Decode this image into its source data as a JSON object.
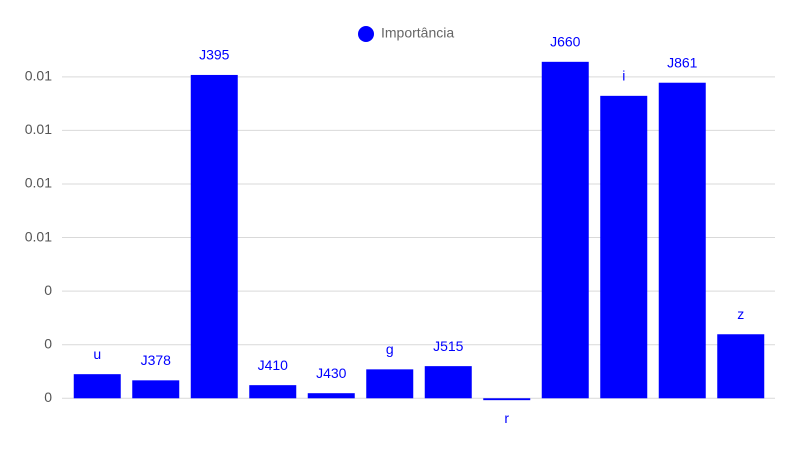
{
  "chart_data": {
    "type": "bar",
    "categories": [
      "u",
      "J378",
      "J395",
      "J410",
      "J430",
      "g",
      "J515",
      "r",
      "J660",
      "i",
      "J861",
      "z"
    ],
    "series": [
      {
        "name": "Importância",
        "color": "#0000ff",
        "values": [
          0.0009,
          0.00067,
          0.01207,
          0.00049,
          0.00019,
          0.00108,
          0.0012,
          -7e-05,
          0.01256,
          0.01129,
          0.01178,
          0.00239
        ]
      }
    ],
    "ylim": [
      -0.0004,
      0.0133
    ],
    "yticks": [
      0,
      {
        "value": 0.002,
        "label": "0"
      },
      {
        "value": 0.004,
        "label": "0"
      },
      {
        "value": 0.006,
        "label": "0.01"
      },
      {
        "value": 0.008,
        "label": "0.01"
      },
      {
        "value": 0.01,
        "label": "0.01"
      },
      {
        "value": 0.012,
        "label": "0.01"
      }
    ],
    "grid": true,
    "legend": "top"
  }
}
